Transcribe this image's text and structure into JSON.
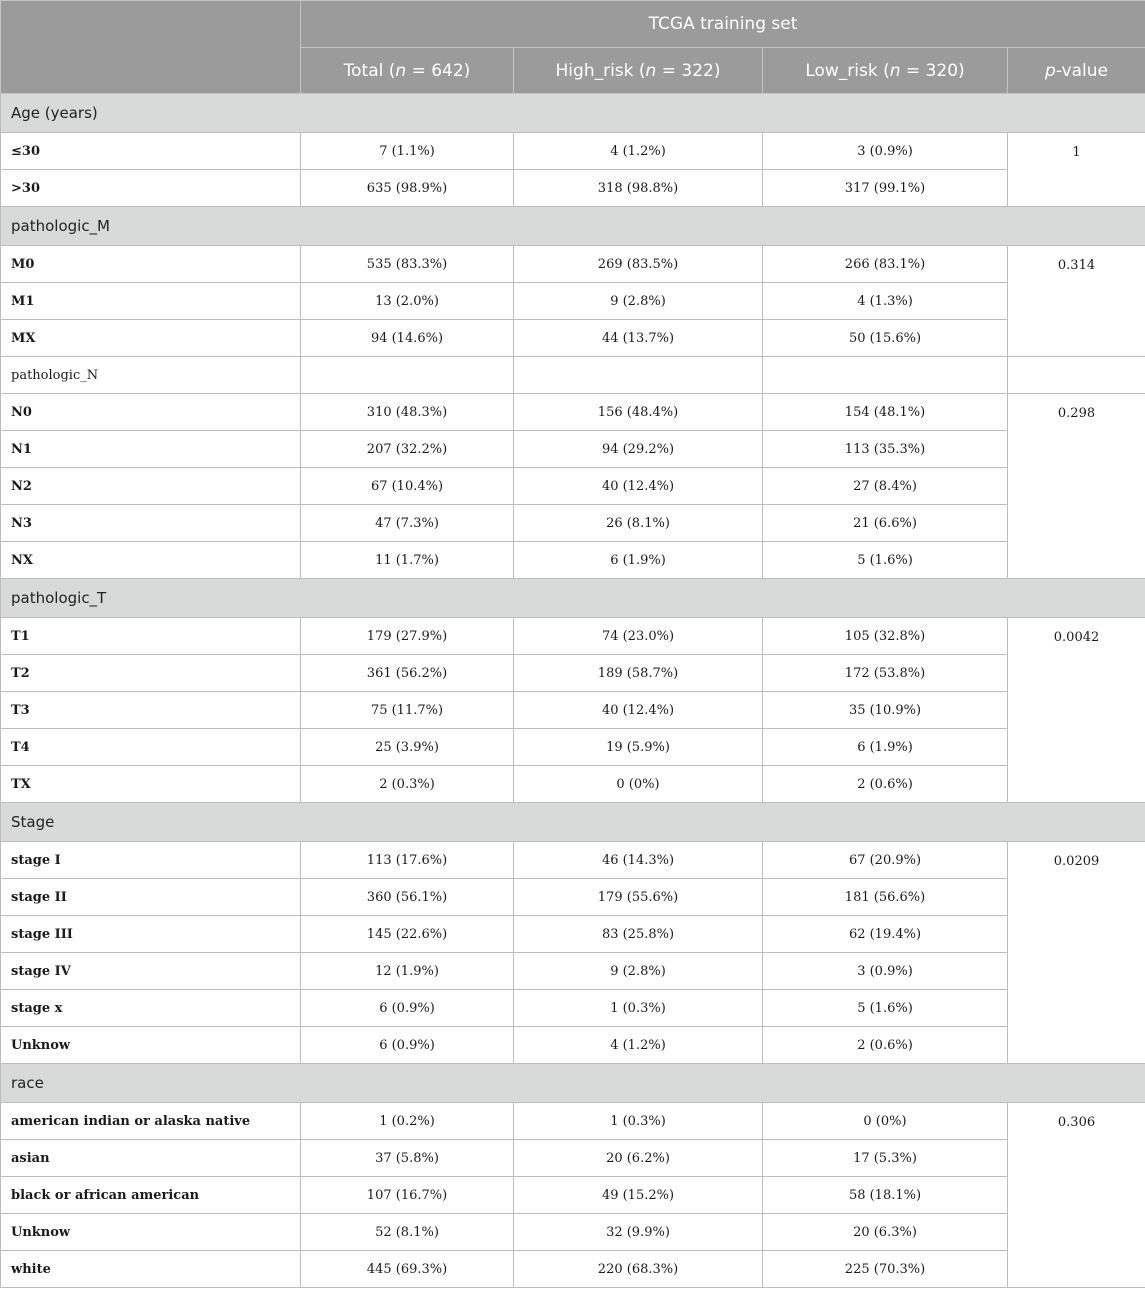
{
  "header": {
    "group": "TCGA training set",
    "columns": [
      {
        "name": "Total (",
        "italic": "n",
        "suffix": " = 642)"
      },
      {
        "name": "High_risk (",
        "italic": "n",
        "suffix": " = 322)"
      },
      {
        "name": "Low_risk (",
        "italic": "n",
        "suffix": " = 320)"
      },
      {
        "name": "",
        "italic": "p",
        "suffix": "-value"
      }
    ]
  },
  "sections": {
    "age": {
      "title": "Age (years)",
      "pvalue": "1",
      "rows": [
        {
          "label": "≤30",
          "total": "7 (1.1%)",
          "high": "4 (1.2%)",
          "low": "3 (0.9%)"
        },
        {
          "label": ">30",
          "total": "635 (98.9%)",
          "high": "318 (98.8%)",
          "low": "317 (99.1%)"
        }
      ]
    },
    "m": {
      "title": "pathologic_M",
      "pvalue": "0.314",
      "rows": [
        {
          "label": "M0",
          "total": "535 (83.3%)",
          "high": "269 (83.5%)",
          "low": "266 (83.1%)"
        },
        {
          "label": "M1",
          "total": "13 (2.0%)",
          "high": "9 (2.8%)",
          "low": "4 (1.3%)"
        },
        {
          "label": "MX",
          "total": "94 (14.6%)",
          "high": "44 (13.7%)",
          "low": "50 (15.6%)"
        }
      ]
    },
    "n": {
      "title": "pathologic_N",
      "pvalue": "0.298",
      "rows": [
        {
          "label": "N0",
          "total": "310 (48.3%)",
          "high": "156 (48.4%)",
          "low": "154 (48.1%)"
        },
        {
          "label": "N1",
          "total": "207 (32.2%)",
          "high": "94 (29.2%)",
          "low": "113 (35.3%)"
        },
        {
          "label": "N2",
          "total": "67 (10.4%)",
          "high": "40 (12.4%)",
          "low": "27 (8.4%)"
        },
        {
          "label": "N3",
          "total": "47 (7.3%)",
          "high": "26 (8.1%)",
          "low": "21 (6.6%)"
        },
        {
          "label": "NX",
          "total": "11 (1.7%)",
          "high": "6 (1.9%)",
          "low": "5 (1.6%)"
        }
      ]
    },
    "t": {
      "title": "pathologic_T",
      "pvalue": "0.0042",
      "rows": [
        {
          "label": "T1",
          "total": "179 (27.9%)",
          "high": "74 (23.0%)",
          "low": "105 (32.8%)"
        },
        {
          "label": "T2",
          "total": "361 (56.2%)",
          "high": "189 (58.7%)",
          "low": "172 (53.8%)"
        },
        {
          "label": "T3",
          "total": "75 (11.7%)",
          "high": "40 (12.4%)",
          "low": "35 (10.9%)"
        },
        {
          "label": "T4",
          "total": "25 (3.9%)",
          "high": "19 (5.9%)",
          "low": "6 (1.9%)"
        },
        {
          "label": "TX",
          "total": "2 (0.3%)",
          "high": "0 (0%)",
          "low": "2 (0.6%)"
        }
      ]
    },
    "stage": {
      "title": "Stage",
      "pvalue": "0.0209",
      "rows": [
        {
          "label": "stage I",
          "total": "113 (17.6%)",
          "high": "46 (14.3%)",
          "low": "67 (20.9%)"
        },
        {
          "label": "stage II",
          "total": "360 (56.1%)",
          "high": "179 (55.6%)",
          "low": "181 (56.6%)"
        },
        {
          "label": "stage III",
          "total": "145 (22.6%)",
          "high": "83 (25.8%)",
          "low": "62 (19.4%)"
        },
        {
          "label": "stage IV",
          "total": "12 (1.9%)",
          "high": "9 (2.8%)",
          "low": "3 (0.9%)"
        },
        {
          "label": "stage x",
          "total": "6 (0.9%)",
          "high": "1 (0.3%)",
          "low": "5 (1.6%)"
        },
        {
          "label": "Unknow",
          "total": "6 (0.9%)",
          "high": "4 (1.2%)",
          "low": "2 (0.6%)"
        }
      ]
    },
    "race": {
      "title": "race",
      "pvalue": "0.306",
      "rows": [
        {
          "label": "american indian or alaska native",
          "total": "1 (0.2%)",
          "high": "1 (0.3%)",
          "low": "0 (0%)"
        },
        {
          "label": "asian",
          "total": "37 (5.8%)",
          "high": "20 (6.2%)",
          "low": "17 (5.3%)"
        },
        {
          "label": "black or african american",
          "total": "107 (16.7%)",
          "high": "49 (15.2%)",
          "low": "58 (18.1%)"
        },
        {
          "label": "Unknow",
          "total": "52 (8.1%)",
          "high": "32 (9.9%)",
          "low": "20 (6.3%)"
        },
        {
          "label": "white",
          "total": "445 (69.3%)",
          "high": "220 (68.3%)",
          "low": "225 (70.3%)"
        }
      ]
    }
  },
  "colors": {
    "header_bg": "#9b9b9b",
    "section_bg": "#d8dad9",
    "border": "#bcbcbc"
  }
}
